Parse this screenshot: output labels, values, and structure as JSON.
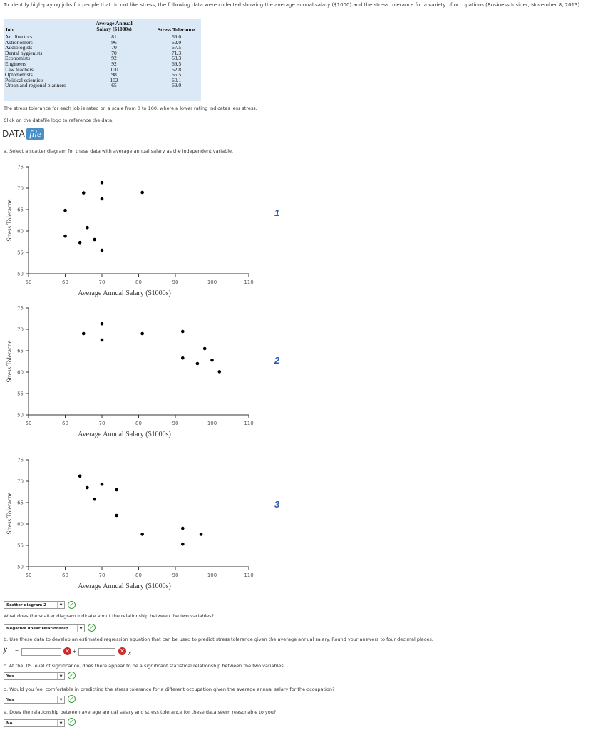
{
  "intro": "To identify high-paying jobs for people that do not like stress, the following data were collected showing the average annual salary ($1000) and the stress tolerance for a variety of occupations (Business Insider, November 8, 2013).",
  "table": {
    "col_job": "Job",
    "col_salary_line1": "Average Annual",
    "col_salary_line2": "Salary ($1000s)",
    "col_stress": "Stress Tolerance",
    "rows": [
      {
        "job": "Art directors",
        "salary": "81",
        "stress": "69.0"
      },
      {
        "job": "Astronomers",
        "salary": "96",
        "stress": "62.0"
      },
      {
        "job": "Audiologists",
        "salary": "70",
        "stress": "67.5"
      },
      {
        "job": "Dental hygienists",
        "salary": "70",
        "stress": "71.3"
      },
      {
        "job": "Economists",
        "salary": "92",
        "stress": "63.3"
      },
      {
        "job": "Engineers",
        "salary": "92",
        "stress": "69.5"
      },
      {
        "job": "Law teachers",
        "salary": "100",
        "stress": "62.8"
      },
      {
        "job": "Optometrists",
        "salary": "98",
        "stress": "65.5"
      },
      {
        "job": "Political scientists",
        "salary": "102",
        "stress": "60.1"
      },
      {
        "job": "Urban and regional planners",
        "salary": "65",
        "stress": "69.0"
      }
    ]
  },
  "note_scale": "The stress tolerance for each job is rated on a scale from 0 to 100, where a lower rating indicates less stress.",
  "note_click": "Click on the datafile logo to reference the data.",
  "datafile": {
    "text": "DATA",
    "logo": "file"
  },
  "question_a": "a. Select a scatter diagram for these data with average annual salary as the independent variable.",
  "chart_data": [
    {
      "type": "scatter",
      "label": "1",
      "title": "",
      "xlabel": "Average Annual Salary ($1000s)",
      "ylabel": "Stress Toleracne",
      "xlim": [
        50,
        110
      ],
      "ylim": [
        50,
        75
      ],
      "xticks": [
        50,
        60,
        70,
        80,
        90,
        100,
        110
      ],
      "yticks": [
        50,
        55,
        60,
        65,
        70,
        75
      ],
      "points": [
        [
          60,
          58.8
        ],
        [
          60,
          64.8
        ],
        [
          64,
          57.3
        ],
        [
          65,
          68.9
        ],
        [
          66,
          60.8
        ],
        [
          68,
          58.0
        ],
        [
          70,
          71.3
        ],
        [
          70,
          67.5
        ],
        [
          70,
          55.5
        ],
        [
          81,
          69.0
        ]
      ]
    },
    {
      "type": "scatter",
      "label": "2",
      "title": "",
      "xlabel": "Average Annual Salary ($1000s)",
      "ylabel": "Stress Toleracne",
      "xlim": [
        50,
        110
      ],
      "ylim": [
        50,
        75
      ],
      "xticks": [
        50,
        60,
        70,
        80,
        90,
        100,
        110
      ],
      "yticks": [
        50,
        55,
        60,
        65,
        70,
        75
      ],
      "points": [
        [
          65,
          69.0
        ],
        [
          70,
          71.3
        ],
        [
          70,
          67.5
        ],
        [
          81,
          69.0
        ],
        [
          92,
          69.5
        ],
        [
          92,
          63.3
        ],
        [
          96,
          62.0
        ],
        [
          98,
          65.5
        ],
        [
          100,
          62.8
        ],
        [
          102,
          60.1
        ]
      ]
    },
    {
      "type": "scatter",
      "label": "3",
      "title": "",
      "xlabel": "Average Annual Salary ($1000s)",
      "ylabel": "Stress Toleracne",
      "xlim": [
        50,
        110
      ],
      "ylim": [
        50,
        75
      ],
      "xticks": [
        50,
        60,
        70,
        80,
        90,
        100,
        110
      ],
      "yticks": [
        50,
        55,
        60,
        65,
        70,
        75
      ],
      "points": [
        [
          64,
          71.2
        ],
        [
          66,
          68.5
        ],
        [
          68,
          65.8
        ],
        [
          70,
          69.3
        ],
        [
          74,
          68.0
        ],
        [
          74,
          62.0
        ],
        [
          81,
          57.6
        ],
        [
          92,
          59.0
        ],
        [
          92,
          55.3
        ],
        [
          97,
          57.6
        ]
      ]
    }
  ],
  "answer_a": {
    "value": "Scatter diagram 2"
  },
  "question_relationship": "What does the scatter diagram indicate about the relationship between the two variables?",
  "answer_relationship": {
    "value": "Negative linear relationship"
  },
  "question_b": "b. Use these data to develop an estimated regression equation that can be used to predict stress tolerance given the average annual salary. Round your answers to four decimal places.",
  "regression": {
    "yhat": "ŷ",
    "equals": "=",
    "plus": "+",
    "x": "x",
    "intercept": "",
    "slope": ""
  },
  "question_c": "c. At the .05 level of significance, does there appear to be a significant statistical relationship between the two variables.",
  "answer_c": {
    "value": "Yes"
  },
  "question_d": "d. Would you feel comfortable in predicting the stress tolerance for a different occupation given the average annual salary for the occupation?",
  "answer_d": {
    "value": "Yes"
  },
  "question_e": "e. Does the relationship between average annual salary and stress tolerance for these data seem reasonable to you?",
  "answer_e": {
    "value": "No"
  },
  "icons": {
    "correct": "check-circle-icon",
    "incorrect": "x-circle-icon",
    "dropdown": "triangle-down-icon"
  },
  "colors": {
    "table_bg": "#dbe9f7",
    "correct": "#39a03a",
    "incorrect": "#cc2a2a",
    "plot_label": "#2a5ba8"
  }
}
